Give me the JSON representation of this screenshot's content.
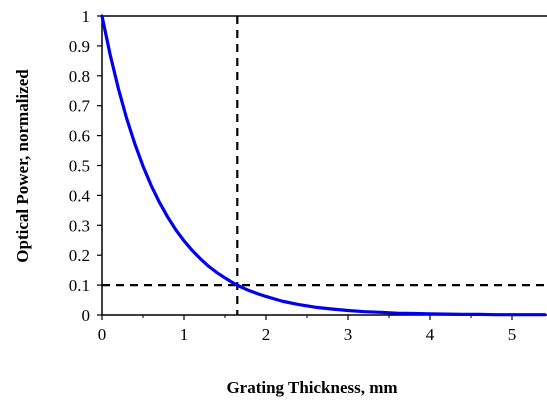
{
  "chart_data": {
    "type": "line",
    "title": "",
    "xlabel": "Grating Thickness, mm",
    "ylabel": "Optical Power, normalized",
    "xlim": [
      0,
      5.4
    ],
    "ylim": [
      0,
      1
    ],
    "x_ticks": [
      "0",
      "1",
      "2",
      "3",
      "4",
      "5"
    ],
    "x_tick_values": [
      0,
      1,
      2,
      3,
      4,
      5
    ],
    "y_ticks": [
      "0",
      "0.1",
      "0.2",
      "0.3",
      "0.4",
      "0.5",
      "0.6",
      "0.7",
      "0.8",
      "0.9",
      "1"
    ],
    "y_tick_values": [
      0,
      0.1,
      0.2,
      0.3,
      0.4,
      0.5,
      0.6,
      0.7,
      0.8,
      0.9,
      1
    ],
    "grid": false,
    "legend": "none",
    "series": [
      {
        "color": "#0000ee",
        "x": [
          0,
          0.1,
          0.2,
          0.3,
          0.4,
          0.5,
          0.6,
          0.7,
          0.8,
          0.9,
          1.0,
          1.1,
          1.2,
          1.3,
          1.4,
          1.5,
          1.6,
          1.65,
          1.7,
          1.8,
          1.9,
          2.0,
          2.2,
          2.4,
          2.6,
          2.8,
          3.0,
          3.2,
          3.4,
          3.6,
          3.8,
          4.0,
          4.2,
          4.4,
          4.6,
          4.8,
          5.0,
          5.2,
          5.4
        ],
        "y": [
          1.0,
          0.87,
          0.757,
          0.658,
          0.573,
          0.498,
          0.433,
          0.377,
          0.328,
          0.285,
          0.248,
          0.216,
          0.188,
          0.163,
          0.142,
          0.124,
          0.107,
          0.1,
          0.093,
          0.081,
          0.071,
          0.062,
          0.046,
          0.035,
          0.026,
          0.02,
          0.015,
          0.011,
          0.009,
          0.006,
          0.005,
          0.004,
          0.003,
          0.002,
          0.002,
          0.001,
          0.001,
          0.001,
          0.001
        ]
      }
    ],
    "reference_lines": [
      {
        "orientation": "vertical",
        "value": 1.65,
        "style": "dashed",
        "color": "#000000"
      },
      {
        "orientation": "horizontal",
        "value": 0.1,
        "style": "dashed",
        "color": "#000000"
      }
    ]
  }
}
